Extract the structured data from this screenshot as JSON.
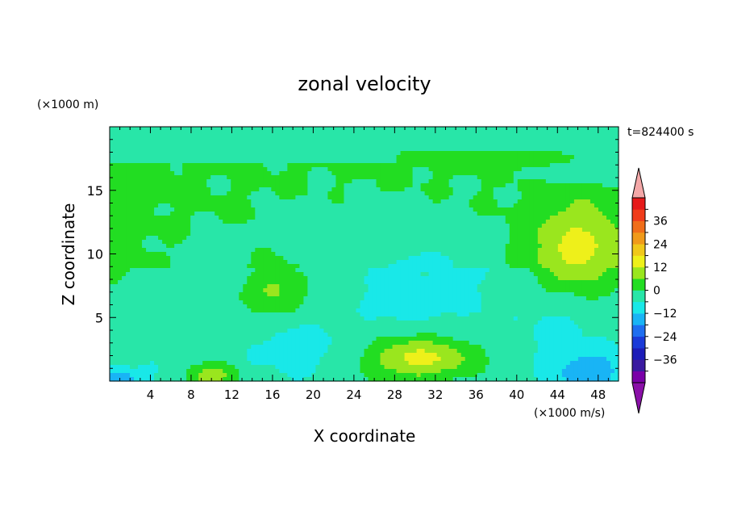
{
  "chart_data": {
    "type": "heatmap",
    "title": "zonal velocity",
    "xlabel": "X coordinate",
    "ylabel": "Z coordinate",
    "x_unit": "(×1000 m/s)",
    "y_unit": "(×1000 m)",
    "time_label": "t=824400 s",
    "xlim": [
      0,
      50
    ],
    "ylim": [
      0,
      20
    ],
    "x_ticks": [
      4,
      8,
      12,
      16,
      20,
      24,
      28,
      32,
      36,
      40,
      44,
      48
    ],
    "y_ticks": [
      5,
      10,
      15
    ],
    "colorbar": {
      "levels": [
        -42,
        -36,
        -30,
        -24,
        -18,
        -12,
        -6,
        0,
        6,
        12,
        18,
        24,
        30,
        36,
        42
      ],
      "tick_labels": [
        "36",
        "24",
        "12",
        "0",
        "-12",
        "-24",
        "-36"
      ],
      "colors": [
        "#7a00a8",
        "#3a1aa0",
        "#1c1cb8",
        "#1a3ad8",
        "#1e6ef0",
        "#19b4f5",
        "#19e8e8",
        "#28e6a8",
        "#22dd22",
        "#9ae61e",
        "#eef01a",
        "#f0c81a",
        "#f09a1a",
        "#f06e1a",
        "#f03c1a",
        "#e61a1a"
      ],
      "under_color": "#8a10a8",
      "over_color": "#f4a8a8"
    },
    "features": [
      {
        "x": 30.5,
        "z": 7.6,
        "value": -16,
        "sx": 4.5,
        "sz": 2.6
      },
      {
        "x": 31,
        "z": 8.5,
        "value": -6,
        "sx": 9,
        "sz": 5
      },
      {
        "x": 46,
        "z": 10.5,
        "value": 14,
        "sx": 4.5,
        "sz": 3.5
      },
      {
        "x": 16,
        "z": 7.3,
        "value": 8,
        "sx": 3.5,
        "sz": 2.3
      },
      {
        "x": 30.5,
        "z": 1.8,
        "value": 14,
        "sx": 5.5,
        "sz": 1.7
      },
      {
        "x": 10,
        "z": 0.4,
        "value": 10,
        "sx": 2.5,
        "sz": 1.0
      },
      {
        "x": 18.5,
        "z": 2.5,
        "value": -8,
        "sx": 4.5,
        "sz": 2.3
      },
      {
        "x": 47,
        "z": 0.8,
        "value": -18,
        "sx": 3.5,
        "sz": 1.6
      },
      {
        "x": 1,
        "z": 0.2,
        "value": -16,
        "sx": 2.5,
        "sz": 0.8
      },
      {
        "x": 44,
        "z": 3.5,
        "value": -10,
        "sx": 2.5,
        "sz": 2.0
      },
      {
        "x": 3.5,
        "z": 15.3,
        "value": 6,
        "sx": 3,
        "sz": 1.1
      },
      {
        "x": 0.8,
        "z": 11,
        "value": 6,
        "sx": 1.8,
        "sz": 3.5
      },
      {
        "x": 10,
        "z": 9,
        "value": -5,
        "sx": 3.5,
        "sz": 2.5
      },
      {
        "x": 20,
        "z": 11.5,
        "value": -3,
        "sx": 5,
        "sz": 3
      },
      {
        "x": 25,
        "z": 19.3,
        "value": -4,
        "sx": 12,
        "sz": 1.1
      },
      {
        "x": 45,
        "z": 16.8,
        "value": -4,
        "sx": 5,
        "sz": 1.3
      },
      {
        "x": 37,
        "z": 17.5,
        "value": 4,
        "sx": 10,
        "sz": 0.8
      },
      {
        "x": 5,
        "z": 5,
        "value": -4,
        "sx": 4,
        "sz": 2.5
      }
    ]
  }
}
